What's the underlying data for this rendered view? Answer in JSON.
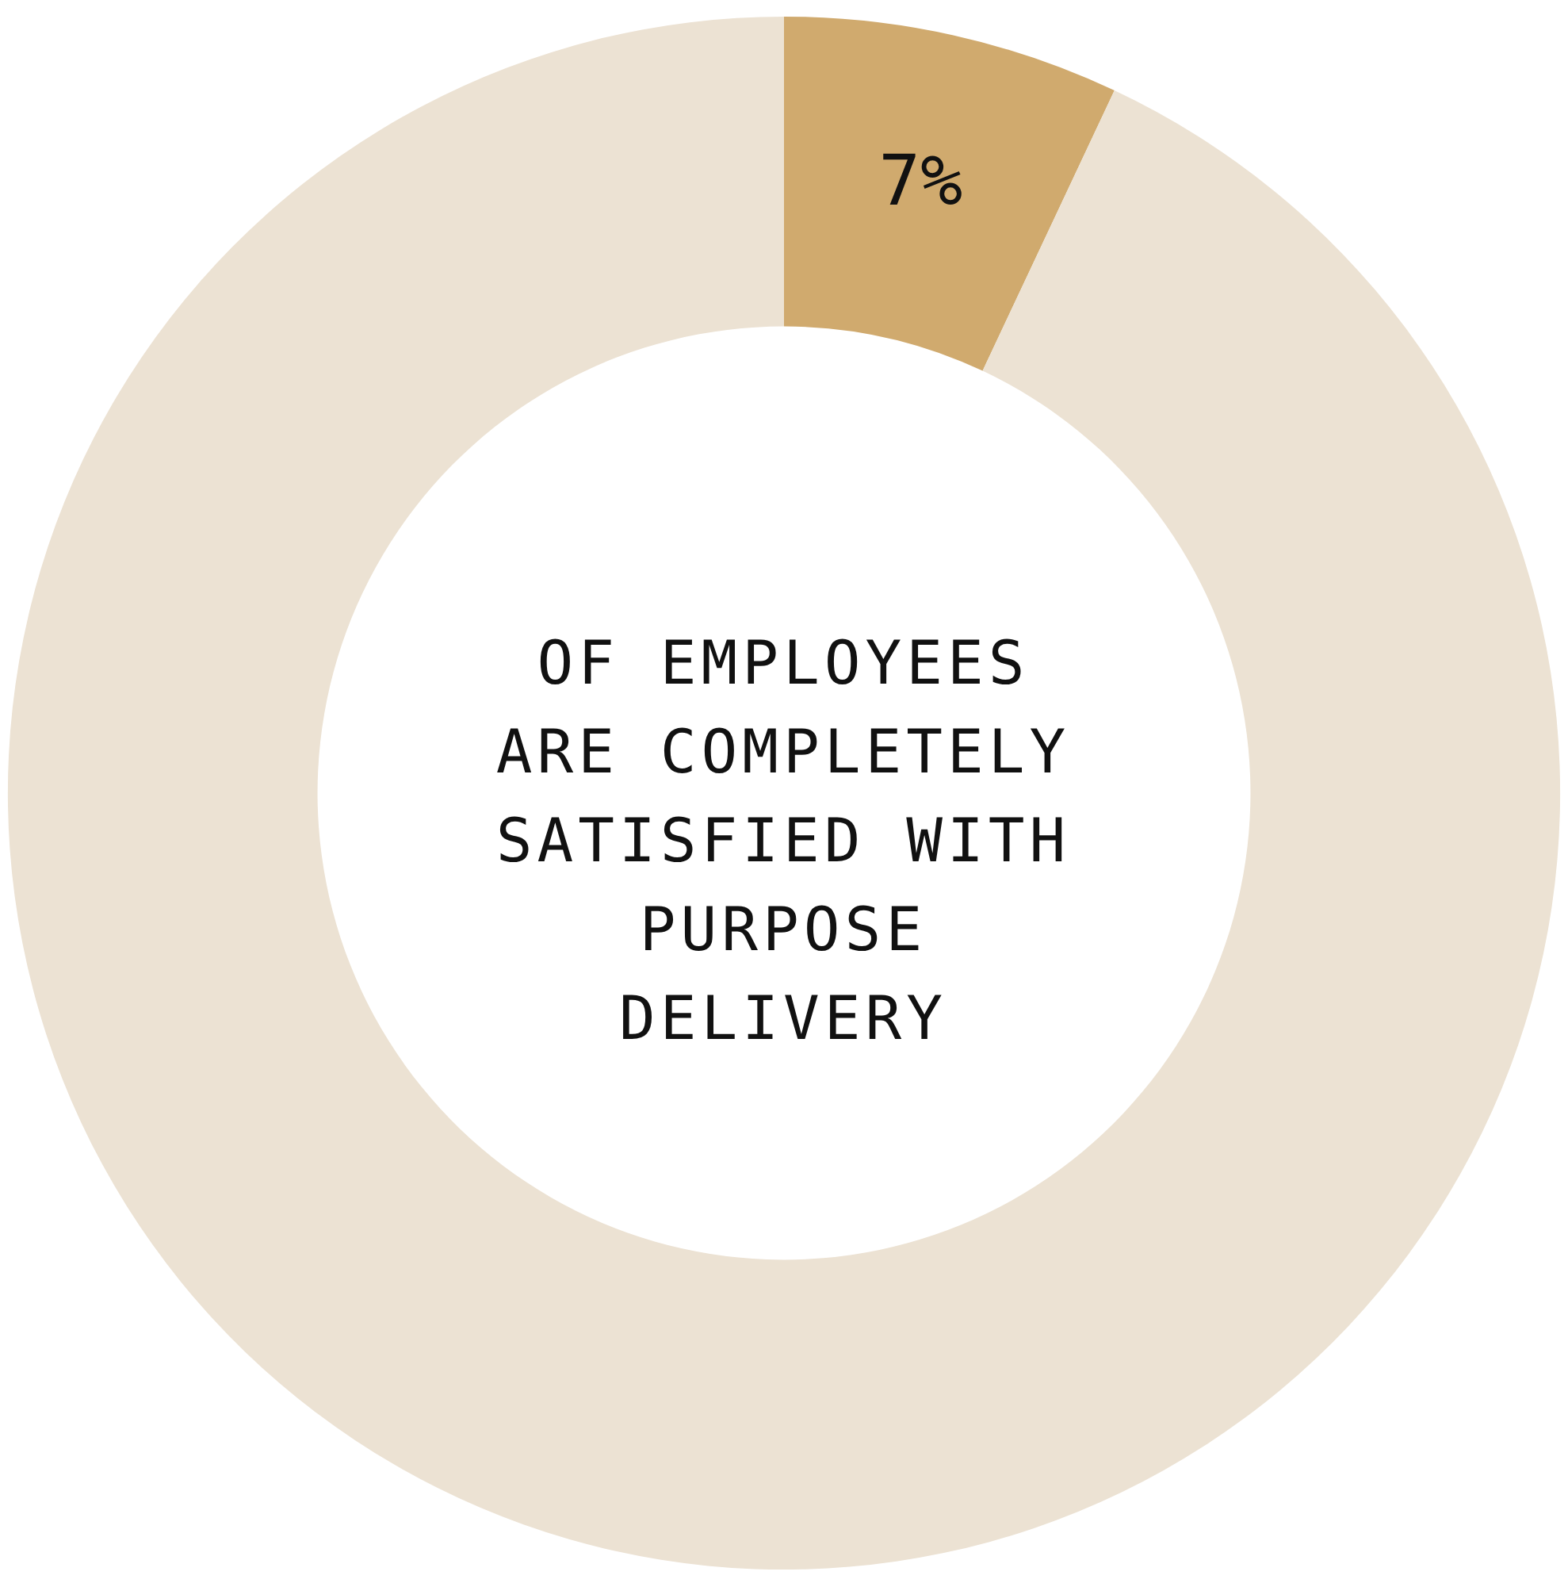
{
  "chart_data": {
    "type": "donut",
    "categories": [
      null,
      null
    ],
    "values": [
      7,
      93
    ],
    "colors": [
      "#d0aa6e",
      "#ece2d3"
    ],
    "value_labels": [
      "7%",
      null
    ],
    "annotations": [
      "OF EMPLOYEES ARE COMPLETELY SATISFIED WITH PURPOSE DELIVERY"
    ]
  }
}
